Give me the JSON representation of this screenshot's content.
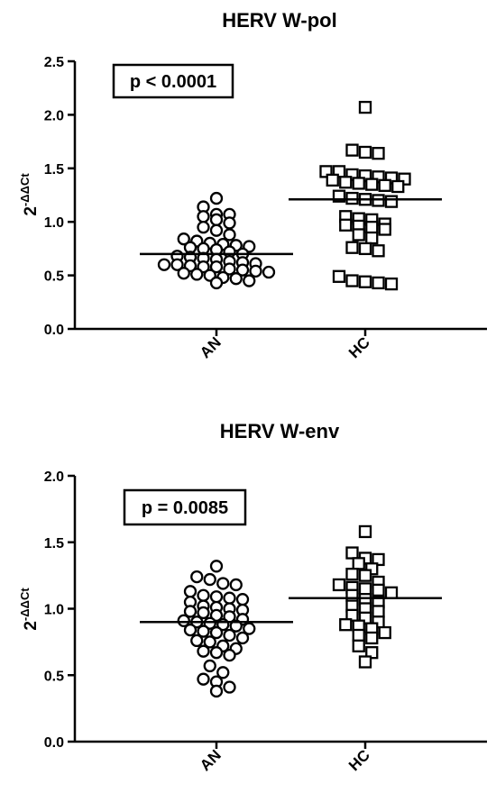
{
  "chart_data": [
    {
      "type": "scatter",
      "title": "HERV W-pol",
      "ylabel_base": "2",
      "ylabel_exponent": "-ΔΔCt",
      "ylim": [
        0,
        2.5
      ],
      "yticks": [
        "0.0",
        "0.5",
        "1.0",
        "1.5",
        "2.0",
        "2.5"
      ],
      "categories": [
        "AN",
        "HC"
      ],
      "annotation": "p < 0.0001",
      "series": [
        {
          "category": "AN",
          "marker": "circle",
          "median": 0.7,
          "values": [
            1.22,
            1.14,
            1.07,
            1.02,
            0.99,
            0.95,
            0.92,
            1.05,
            1.07,
            0.88,
            0.84,
            0.82,
            0.8,
            0.79,
            0.78,
            0.77,
            0.76,
            0.75,
            0.74,
            0.72,
            0.7,
            0.68,
            0.67,
            0.66,
            0.65,
            0.63,
            0.62,
            0.61,
            0.6,
            0.6,
            0.59,
            0.58,
            0.58,
            0.56,
            0.55,
            0.54,
            0.53,
            0.52,
            0.51,
            0.5,
            0.48,
            0.47,
            0.45,
            0.43
          ]
        },
        {
          "category": "HC",
          "marker": "square",
          "median": 1.21,
          "values": [
            2.07,
            1.67,
            1.65,
            1.64,
            1.47,
            1.47,
            1.44,
            1.43,
            1.42,
            1.41,
            1.4,
            1.39,
            1.37,
            1.36,
            1.35,
            1.34,
            1.33,
            1.24,
            1.22,
            1.21,
            1.2,
            1.19,
            1.05,
            1.03,
            1.02,
            0.98,
            0.97,
            0.96,
            0.95,
            0.93,
            0.88,
            0.85,
            0.76,
            0.75,
            0.73,
            0.49,
            0.45,
            0.44,
            0.43,
            0.42
          ]
        }
      ]
    },
    {
      "type": "scatter",
      "title": "HERV W-env",
      "ylabel_base": "2",
      "ylabel_exponent": "-ΔΔCt",
      "ylim": [
        0,
        2.0
      ],
      "yticks": [
        "0.0",
        "0.5",
        "1.0",
        "1.5",
        "2.0"
      ],
      "categories": [
        "AN",
        "HC"
      ],
      "annotation": "p = 0.0085",
      "series": [
        {
          "category": "AN",
          "marker": "circle",
          "median": 0.9,
          "values": [
            1.32,
            1.24,
            1.22,
            1.19,
            1.18,
            1.13,
            1.1,
            1.09,
            1.08,
            1.07,
            1.05,
            1.02,
            1.01,
            1.0,
            0.99,
            0.98,
            0.97,
            0.95,
            0.94,
            0.92,
            0.91,
            0.9,
            0.89,
            0.88,
            0.87,
            0.85,
            0.84,
            0.83,
            0.82,
            0.8,
            0.78,
            0.76,
            0.75,
            0.72,
            0.7,
            0.68,
            0.67,
            0.65,
            0.57,
            0.52,
            0.47,
            0.45,
            0.41,
            0.38
          ]
        },
        {
          "category": "HC",
          "marker": "square",
          "median": 1.08,
          "values": [
            1.58,
            1.42,
            1.38,
            1.37,
            1.34,
            1.3,
            1.26,
            1.25,
            1.2,
            1.18,
            1.16,
            1.15,
            1.14,
            1.12,
            1.1,
            1.07,
            1.05,
            1.02,
            1.0,
            0.98,
            0.95,
            0.93,
            0.9,
            0.88,
            0.87,
            0.85,
            0.82,
            0.8,
            0.78,
            0.72,
            0.67,
            0.6
          ]
        }
      ]
    }
  ]
}
